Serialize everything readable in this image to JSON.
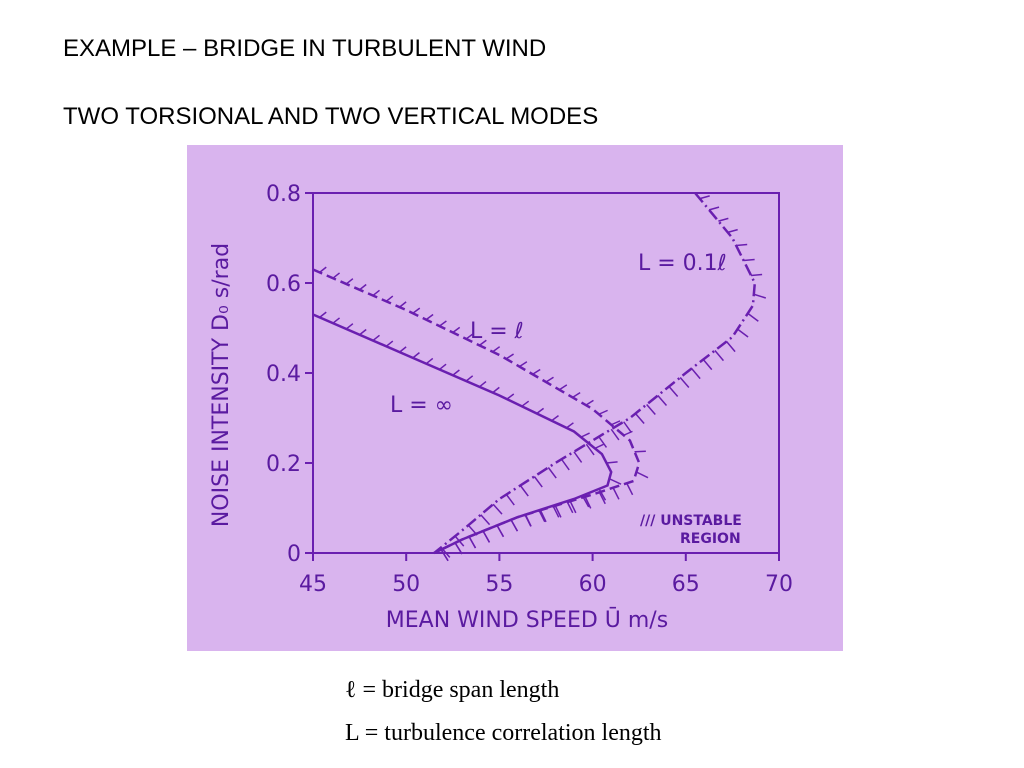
{
  "slide": {
    "title": "EXAMPLE – BRIDGE IN TURBULENT WIND",
    "subtitle": "TWO TORSIONAL AND TWO VERTICAL MODES",
    "notes": [
      "ℓ = bridge span length",
      "L = turbulence correlation length"
    ]
  },
  "chart_data": {
    "type": "line",
    "x_label": "MEAN WIND SPEED Ū   m/s",
    "y_label": "NOISE INTENSITY D₀   s/rad",
    "xlim": [
      45,
      70
    ],
    "xticks": [
      45,
      50,
      55,
      60,
      65,
      70
    ],
    "ylim": [
      0,
      0.8
    ],
    "yticks": [
      0,
      0.2,
      0.4,
      0.6,
      0.8
    ],
    "annotations": [
      "/// UNSTABLE",
      "REGION"
    ],
    "series": [
      {
        "name": "L = ∞",
        "color": "#6a1fb0",
        "dash": "solid",
        "x": [
          45,
          50,
          55,
          59,
          60.5,
          61,
          60.8,
          59,
          56,
          53,
          51.5
        ],
        "values": [
          0.53,
          0.44,
          0.35,
          0.27,
          0.22,
          0.18,
          0.15,
          0.12,
          0.08,
          0.03,
          0
        ]
      },
      {
        "name": "L = ℓ",
        "color": "#6a1fb0",
        "dash": "dashed",
        "x": [
          45,
          50,
          55,
          60,
          62,
          62.5,
          62.2,
          60,
          56,
          53,
          51.5
        ],
        "values": [
          0.63,
          0.54,
          0.44,
          0.32,
          0.25,
          0.2,
          0.16,
          0.13,
          0.08,
          0.03,
          0
        ]
      },
      {
        "name": "L = 0.1ℓ",
        "color": "#6a1fb0",
        "dash": "dashdot",
        "x": [
          65.5,
          67.5,
          68.7,
          68.6,
          67.5,
          65,
          62,
          58,
          55,
          53,
          51.5
        ],
        "values": [
          0.8,
          0.7,
          0.6,
          0.55,
          0.48,
          0.4,
          0.3,
          0.2,
          0.12,
          0.05,
          0
        ]
      }
    ]
  }
}
